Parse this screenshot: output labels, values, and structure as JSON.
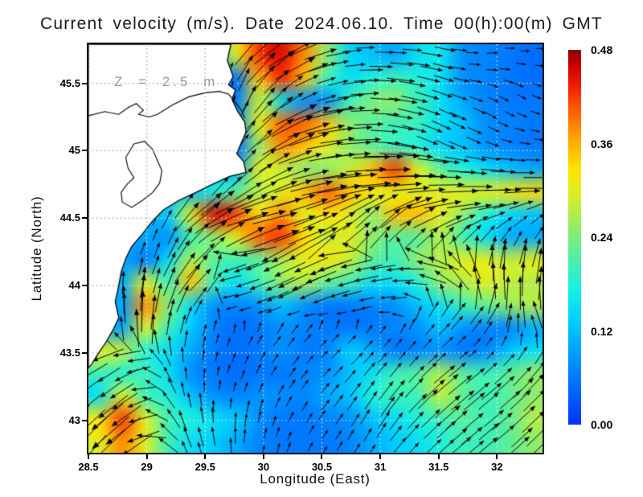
{
  "title": "Current velocity (m/s). Date 2024.06.10. Time 00(h):00(m) GMT",
  "annotation": "Z = 2.5 m",
  "chart_data": {
    "type": "heatmap",
    "subtype": "vector-field-quiver",
    "title": "Current velocity (m/s). Date 2024.06.10. Time 00(h):00(m) GMT",
    "xlabel": "Longitude (East)",
    "ylabel": "Latitude (North)",
    "units": "m/s",
    "xlim": [
      28.5,
      32.39
    ],
    "ylim": [
      42.76,
      45.79
    ],
    "xticks": {
      "values": [
        28.5,
        29,
        29.5,
        30,
        30.5,
        31,
        31.5,
        32
      ],
      "labels": [
        "28.5",
        "29",
        "29.5",
        "30",
        "30.5",
        "31",
        "31.5",
        "32"
      ]
    },
    "yticks": {
      "values": [
        45.5,
        45,
        44.5,
        44,
        43.5,
        43
      ],
      "labels": [
        "45.5",
        "45",
        "44.5",
        "44",
        "43.5",
        "43"
      ]
    },
    "grid": true,
    "grid_color_sea": "#ffffff",
    "grid_color_land": "#a0a0a0",
    "land_color": "#ffffff",
    "coast_color": "#000000",
    "arrow_color": "#000000",
    "colorbar": {
      "min": 0,
      "max": 0.48,
      "tick_labels": [
        "0.48",
        "0.36",
        "0.24",
        "0.12",
        "0.00"
      ],
      "tick_values": [
        0.48,
        0.36,
        0.24,
        0.12,
        0
      ],
      "colormap": "jet",
      "stops": [
        [
          0,
          "#0432ff"
        ],
        [
          0.14,
          "#0082ff"
        ],
        [
          0.27,
          "#00ccff"
        ],
        [
          0.36,
          "#16f0e4"
        ],
        [
          0.45,
          "#55eea0"
        ],
        [
          0.53,
          "#96ec64"
        ],
        [
          0.61,
          "#d8ee28"
        ],
        [
          0.68,
          "#ffe400"
        ],
        [
          0.76,
          "#ffa800"
        ],
        [
          0.84,
          "#ff5c00"
        ],
        [
          0.91,
          "#f01800"
        ],
        [
          0.96,
          "#c80000"
        ],
        [
          1,
          "#8c0000"
        ]
      ]
    },
    "speed_grid_note": "20 cols (lon 28.5->32.39) x 18 rows (lat 45.79->42.76, north first), m/s",
    "speed_grid": [
      [
        0.1,
        0.1,
        0.1,
        0.1,
        0.1,
        0.1,
        0.3,
        0.42,
        0.45,
        0.38,
        0.25,
        0.14,
        0.12,
        0.1,
        0.15,
        0.16,
        0.08,
        0.07,
        0.06,
        0.05
      ],
      [
        0.1,
        0.1,
        0.1,
        0.1,
        0.1,
        0.1,
        0.05,
        0.35,
        0.43,
        0.35,
        0.2,
        0.15,
        0.18,
        0.2,
        0.18,
        0.15,
        0.08,
        0.07,
        0.06,
        0.05
      ],
      [
        0.1,
        0.1,
        0.1,
        0.1,
        0.1,
        0.1,
        0.06,
        0.28,
        0.15,
        0.08,
        0.08,
        0.2,
        0.24,
        0.25,
        0.2,
        0.15,
        0.1,
        0.07,
        0.06,
        0.06
      ],
      [
        0.1,
        0.1,
        0.1,
        0.1,
        0.1,
        0.1,
        0.08,
        0.3,
        0.4,
        0.4,
        0.35,
        0.25,
        0.22,
        0.2,
        0.2,
        0.15,
        0.12,
        0.08,
        0.07,
        0.06
      ],
      [
        0.1,
        0.1,
        0.1,
        0.1,
        0.1,
        0.1,
        0.04,
        0.25,
        0.38,
        0.35,
        0.3,
        0.25,
        0.22,
        0.2,
        0.18,
        0.14,
        0.12,
        0.08,
        0.07,
        0.06
      ],
      [
        0.1,
        0.1,
        0.1,
        0.1,
        0.1,
        0.1,
        0.1,
        0.3,
        0.28,
        0.25,
        0.25,
        0.28,
        0.35,
        0.42,
        0.3,
        0.22,
        0.18,
        0.15,
        0.12,
        0.1
      ],
      [
        0.1,
        0.1,
        0.1,
        0.1,
        0.12,
        0.18,
        0.22,
        0.27,
        0.3,
        0.35,
        0.4,
        0.35,
        0.32,
        0.3,
        0.3,
        0.3,
        0.3,
        0.3,
        0.32,
        0.33
      ],
      [
        0.1,
        0.1,
        0.1,
        0.13,
        0.3,
        0.45,
        0.42,
        0.33,
        0.38,
        0.3,
        0.33,
        0.3,
        0.25,
        0.35,
        0.35,
        0.3,
        0.25,
        0.18,
        0.14,
        0.12
      ],
      [
        0.1,
        0.1,
        0.1,
        0.08,
        0.2,
        0.25,
        0.3,
        0.4,
        0.42,
        0.33,
        0.28,
        0.3,
        0.25,
        0.22,
        0.22,
        0.27,
        0.2,
        0.15,
        0.1,
        0.1
      ],
      [
        0.1,
        0.1,
        0.06,
        0.15,
        0.27,
        0.22,
        0.2,
        0.22,
        0.27,
        0.3,
        0.32,
        0.28,
        0.22,
        0.2,
        0.25,
        0.27,
        0.3,
        0.3,
        0.28,
        0.3
      ],
      [
        0.1,
        0.1,
        0.3,
        0.2,
        0.35,
        0.2,
        0.15,
        0.2,
        0.25,
        0.27,
        0.22,
        0.2,
        0.15,
        0.15,
        0.18,
        0.25,
        0.27,
        0.3,
        0.28,
        0.27
      ],
      [
        0.1,
        0.1,
        0.38,
        0.25,
        0.15,
        0.08,
        0.07,
        0.08,
        0.12,
        0.08,
        0.06,
        0.06,
        0.07,
        0.08,
        0.12,
        0.15,
        0.2,
        0.22,
        0.25,
        0.27
      ],
      [
        0.1,
        0.1,
        0.3,
        0.2,
        0.13,
        0.07,
        0.05,
        0.06,
        0.08,
        0.07,
        0.06,
        0.06,
        0.06,
        0.07,
        0.08,
        0.12,
        0.08,
        0.07,
        0.07,
        0.1
      ],
      [
        0.3,
        0.28,
        0.18,
        0.15,
        0.1,
        0.06,
        0.05,
        0.06,
        0.08,
        0.06,
        0.07,
        0.13,
        0.1,
        0.06,
        0.07,
        0.08,
        0.06,
        0.07,
        0.12,
        0.15
      ],
      [
        0.2,
        0.18,
        0.2,
        0.15,
        0.08,
        0.06,
        0.05,
        0.06,
        0.06,
        0.07,
        0.08,
        0.12,
        0.15,
        0.2,
        0.22,
        0.27,
        0.22,
        0.2,
        0.22,
        0.25
      ],
      [
        0.15,
        0.3,
        0.2,
        0.18,
        0.12,
        0.08,
        0.07,
        0.08,
        0.08,
        0.07,
        0.1,
        0.12,
        0.18,
        0.2,
        0.2,
        0.28,
        0.22,
        0.2,
        0.22,
        0.25
      ],
      [
        0.32,
        0.42,
        0.3,
        0.2,
        0.18,
        0.15,
        0.13,
        0.08,
        0.06,
        0.06,
        0.07,
        0.08,
        0.12,
        0.15,
        0.18,
        0.2,
        0.22,
        0.2,
        0.22,
        0.27
      ],
      [
        0.3,
        0.38,
        0.3,
        0.2,
        0.15,
        0.13,
        0.1,
        0.07,
        0.06,
        0.06,
        0.06,
        0.07,
        0.1,
        0.13,
        0.15,
        0.18,
        0.2,
        0.2,
        0.22,
        0.25
      ]
    ],
    "angle_grid_deg_note": "flow direction, 0=east 90=north, same grid as speed_grid",
    "angle_grid_deg": [
      [
        50,
        50,
        50,
        50,
        50,
        50,
        60,
        45,
        35,
        25,
        15,
        5,
        0,
        0,
        -5,
        -10,
        0,
        5,
        0,
        0
      ],
      [
        50,
        50,
        50,
        50,
        50,
        50,
        70,
        50,
        38,
        25,
        15,
        8,
        0,
        -5,
        -10,
        -15,
        -5,
        0,
        -10,
        -5
      ],
      [
        50,
        50,
        50,
        50,
        50,
        50,
        80,
        60,
        45,
        30,
        18,
        8,
        0,
        -8,
        -15,
        -20,
        -15,
        -25,
        -30,
        -20
      ],
      [
        50,
        50,
        50,
        50,
        50,
        50,
        70,
        50,
        35,
        22,
        12,
        5,
        0,
        -8,
        -18,
        -25,
        -25,
        -30,
        -25,
        -15
      ],
      [
        50,
        50,
        50,
        50,
        50,
        50,
        60,
        45,
        32,
        20,
        10,
        5,
        0,
        -10,
        -20,
        -28,
        -25,
        -20,
        -10,
        -5
      ],
      [
        50,
        50,
        50,
        50,
        50,
        55,
        52,
        42,
        28,
        16,
        10,
        5,
        2,
        0,
        -2,
        -5,
        -5,
        -5,
        0,
        0
      ],
      [
        50,
        50,
        50,
        50,
        58,
        52,
        42,
        32,
        22,
        15,
        10,
        8,
        5,
        5,
        3,
        2,
        0,
        0,
        0,
        0
      ],
      [
        55,
        55,
        55,
        62,
        52,
        35,
        20,
        12,
        12,
        18,
        25,
        35,
        45,
        35,
        22,
        12,
        10,
        15,
        25,
        30
      ],
      [
        60,
        60,
        60,
        72,
        58,
        42,
        30,
        25,
        20,
        22,
        28,
        38,
        48,
        45,
        40,
        42,
        48,
        55,
        60,
        60
      ],
      [
        85,
        82,
        78,
        68,
        55,
        42,
        200,
        200,
        205,
        205,
        200,
        195,
        190,
        185,
        175,
        155,
        115,
        90,
        85,
        80
      ],
      [
        90,
        90,
        85,
        75,
        60,
        40,
        195,
        200,
        205,
        205,
        200,
        195,
        190,
        185,
        170,
        145,
        105,
        95,
        90,
        85
      ],
      [
        95,
        95,
        90,
        80,
        70,
        60,
        195,
        200,
        205,
        205,
        200,
        195,
        190,
        185,
        60,
        55,
        50,
        60,
        90,
        110
      ],
      [
        100,
        100,
        95,
        85,
        78,
        75,
        70,
        60,
        52,
        48,
        45,
        45,
        48,
        52,
        50,
        45,
        50,
        60,
        90,
        120
      ],
      [
        205,
        205,
        195,
        120,
        95,
        80,
        72,
        62,
        55,
        50,
        46,
        45,
        48,
        52,
        45,
        40,
        40,
        45,
        50,
        55
      ],
      [
        215,
        215,
        205,
        130,
        100,
        85,
        75,
        65,
        58,
        52,
        48,
        50,
        52,
        50,
        45,
        40,
        38,
        40,
        45,
        48
      ],
      [
        220,
        218,
        210,
        140,
        105,
        95,
        85,
        75,
        65,
        58,
        52,
        55,
        58,
        52,
        45,
        42,
        40,
        40,
        42,
        45
      ],
      [
        225,
        220,
        215,
        150,
        110,
        100,
        90,
        80,
        70,
        62,
        55,
        58,
        60,
        52,
        45,
        42,
        40,
        40,
        42,
        45
      ],
      [
        230,
        225,
        218,
        160,
        115,
        105,
        95,
        85,
        75,
        65,
        58,
        60,
        58,
        50,
        45,
        42,
        40,
        40,
        42,
        45
      ]
    ],
    "coastline": {
      "main": [
        [
          29.72,
          45.79
        ],
        [
          29.69,
          45.67
        ],
        [
          29.74,
          45.55
        ],
        [
          29.7,
          45.49
        ],
        [
          29.76,
          45.45
        ],
        [
          29.73,
          45.38
        ],
        [
          29.78,
          45.29
        ],
        [
          29.84,
          45.21
        ],
        [
          29.85,
          45.14
        ],
        [
          29.81,
          45.06
        ],
        [
          29.77,
          44.98
        ],
        [
          29.83,
          44.92
        ],
        [
          29.85,
          44.84
        ],
        [
          29.71,
          44.81
        ],
        [
          29.56,
          44.75
        ],
        [
          29.42,
          44.69
        ],
        [
          29.27,
          44.63
        ],
        [
          29.14,
          44.56
        ],
        [
          29.04,
          44.47
        ],
        [
          28.96,
          44.38
        ],
        [
          28.87,
          44.29
        ],
        [
          28.82,
          44.2
        ],
        [
          28.78,
          44.1
        ],
        [
          28.76,
          44.0
        ],
        [
          28.73,
          43.88
        ],
        [
          28.76,
          43.76
        ],
        [
          28.71,
          43.67
        ],
        [
          28.65,
          43.58
        ],
        [
          28.58,
          43.49
        ],
        [
          28.53,
          43.42
        ],
        [
          28.5,
          43.39
        ]
      ],
      "inner": [
        [
          28.5,
          45.26
        ],
        [
          28.64,
          45.29
        ],
        [
          28.76,
          45.27
        ],
        [
          28.84,
          45.32
        ],
        [
          28.91,
          45.35
        ],
        [
          28.97,
          45.3
        ],
        [
          28.93,
          45.27
        ],
        [
          29.02,
          45.25
        ],
        [
          29.09,
          45.27
        ],
        [
          29.22,
          45.34
        ],
        [
          29.36,
          45.4
        ],
        [
          29.5,
          45.43
        ],
        [
          29.62,
          45.44
        ],
        [
          29.7,
          45.42
        ],
        [
          29.76,
          45.36
        ],
        [
          29.81,
          45.3
        ],
        [
          29.84,
          45.24
        ]
      ],
      "lagoon": [
        [
          28.89,
          45.05
        ],
        [
          28.98,
          45.07
        ],
        [
          29.05,
          45.01
        ],
        [
          29.09,
          44.93
        ],
        [
          29.13,
          44.85
        ],
        [
          29.11,
          44.76
        ],
        [
          29.05,
          44.69
        ],
        [
          28.96,
          44.63
        ],
        [
          28.87,
          44.58
        ],
        [
          28.79,
          44.62
        ],
        [
          28.78,
          44.69
        ],
        [
          28.83,
          44.75
        ],
        [
          28.89,
          44.8
        ],
        [
          28.84,
          44.87
        ],
        [
          28.82,
          44.95
        ]
      ]
    }
  }
}
